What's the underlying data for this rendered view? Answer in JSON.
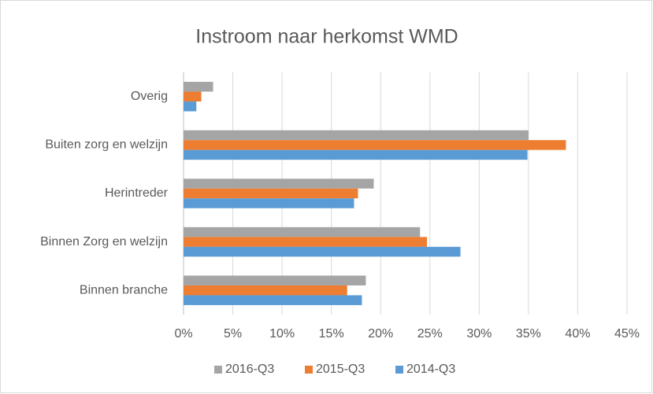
{
  "chart_data": {
    "type": "hbar",
    "title": "Instroom naar herkomst WMD",
    "categories": [
      "Overig",
      "Buiten zorg en welzijn",
      "Herintreder",
      "Binnen Zorg en welzijn",
      "Binnen branche"
    ],
    "series": [
      {
        "name": "2016-Q3",
        "color": "#a5a5a5",
        "values": [
          3.0,
          35.0,
          19.3,
          24.0,
          18.5
        ]
      },
      {
        "name": "2015-Q3",
        "color": "#ed7d31",
        "values": [
          1.8,
          38.8,
          17.7,
          24.7,
          16.6
        ]
      },
      {
        "name": "2014-Q3",
        "color": "#5b9bd5",
        "values": [
          1.3,
          34.9,
          17.3,
          28.1,
          18.1
        ]
      }
    ],
    "xlim": [
      0,
      45
    ],
    "xticks": [
      {
        "value": 0,
        "label": "0%"
      },
      {
        "value": 5,
        "label": "5%"
      },
      {
        "value": 10,
        "label": "10%"
      },
      {
        "value": 15,
        "label": "15%"
      },
      {
        "value": 20,
        "label": "20%"
      },
      {
        "value": 25,
        "label": "25%"
      },
      {
        "value": 30,
        "label": "30%"
      },
      {
        "value": 35,
        "label": "35%"
      },
      {
        "value": 40,
        "label": "40%"
      },
      {
        "value": 45,
        "label": "45%"
      }
    ],
    "grid": true,
    "legend": "bottom"
  }
}
